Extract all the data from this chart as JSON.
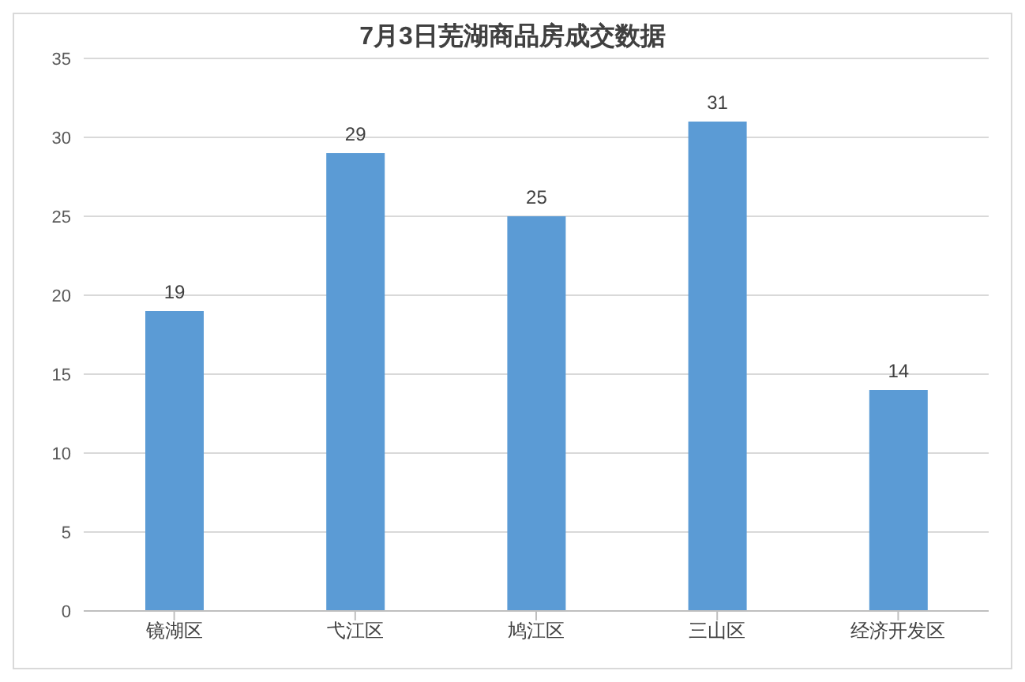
{
  "chart_data": {
    "type": "bar",
    "title": "7月3日芜湖商品房成交数据",
    "categories": [
      "镜湖区",
      "弋江区",
      "鸠江区",
      "三山区",
      "经济开发区"
    ],
    "values": [
      19,
      29,
      25,
      31,
      14
    ],
    "color": "#5b9bd5",
    "ylim": [
      0,
      35
    ],
    "yticks": [
      0,
      5,
      10,
      15,
      20,
      25,
      30,
      35
    ],
    "grid": "y",
    "data_labels": true
  }
}
